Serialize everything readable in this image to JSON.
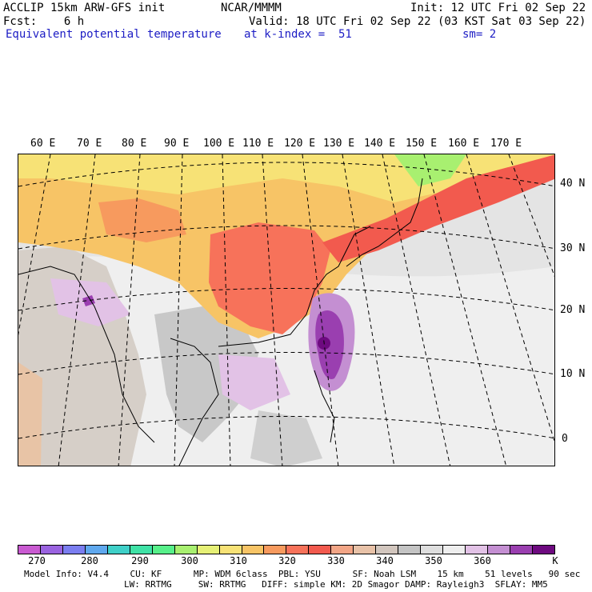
{
  "header": {
    "line1_left": "ACCLIP 15km ARW-GFS init",
    "line1_center": "NCAR/MMMM",
    "line1_right": "Init: 12 UTC Fri 02 Sep 22",
    "line2_left": "Fcst:    6 h",
    "line2_right": "Valid: 18 UTC Fri 02 Sep 22 (03 KST Sat 03 Sep 22)",
    "line3_field": "Equivalent potential temperature",
    "line3_level": "at k-index =  51",
    "line3_smooth": "sm= 2"
  },
  "map": {
    "lon_labels": [
      "60 E",
      "70 E",
      "80 E",
      "90 E",
      "100 E",
      "110 E",
      "120 E",
      "130 E",
      "140 E",
      "150 E",
      "160 E",
      "170 E"
    ],
    "lat_labels": [
      "40 N",
      "30 N",
      "20 N",
      "10 N",
      "0"
    ]
  },
  "colorbar": {
    "unit": "K",
    "tick_labels": [
      "270",
      "280",
      "290",
      "300",
      "310",
      "320",
      "330",
      "340",
      "350",
      "360"
    ],
    "colors": [
      "#c95ad1",
      "#9a63e0",
      "#7b7ef0",
      "#5fa8ee",
      "#3fd0c8",
      "#3fe2a6",
      "#57f08a",
      "#a8f070",
      "#e6f076",
      "#f7e276",
      "#f7c466",
      "#f79a5e",
      "#f7725a",
      "#f25a4e",
      "#f2a586",
      "#e8c2a8",
      "#d2c6be",
      "#c4c4c4",
      "#dedede",
      "#eeeeee",
      "#e2c2e6",
      "#c48fd2",
      "#9a3fb0",
      "#6e0a80"
    ]
  },
  "footer": {
    "line1": "Model Info: V4.4    CU: KF      MP: WDM 6class  PBL: YSU      SF: Noah LSM    15 km    51 levels   90 sec",
    "line2": "LW: RRTMG     SW: RRTMG   DIFF: simple KM: 2D Smagor DAMP: Rayleigh3  SFLAY: MM5"
  }
}
